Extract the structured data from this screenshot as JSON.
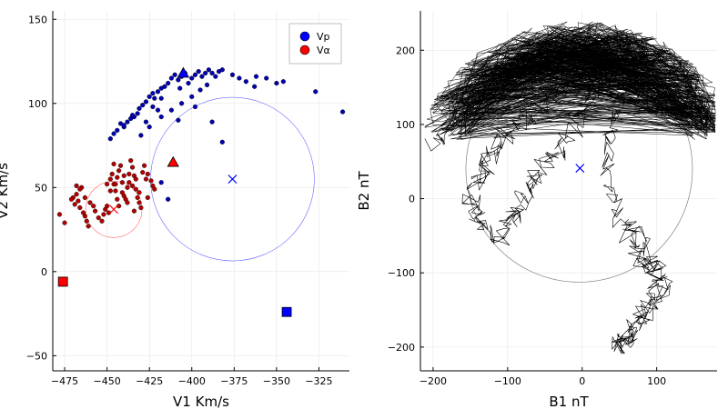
{
  "chart_data": [
    {
      "type": "scatter",
      "xlabel": "V1 Km/s",
      "ylabel": "V2 Km/s",
      "xlim": [
        -482,
        -307
      ],
      "ylim": [
        -59,
        155
      ],
      "xticks": [
        -475,
        -450,
        -425,
        -400,
        -375,
        -350,
        -325
      ],
      "yticks": [
        -50,
        0,
        50,
        100,
        150
      ],
      "grid": true,
      "legend_position": "top-right",
      "legend": [
        {
          "label": "Vp",
          "color": "#0000ff"
        },
        {
          "label": "Vα",
          "color": "#ff0000"
        }
      ],
      "series": [
        {
          "name": "Vp",
          "color": "#0000ff",
          "points": [
            [
              -448,
              79
            ],
            [
              -446,
              82
            ],
            [
              -444,
              84
            ],
            [
              -442,
              88
            ],
            [
              -440,
              86
            ],
            [
              -438,
              89
            ],
            [
              -436,
              91
            ],
            [
              -434,
              92
            ],
            [
              -432,
              94
            ],
            [
              -431,
              97
            ],
            [
              -429,
              99
            ],
            [
              -427,
              101
            ],
            [
              -425,
              104
            ],
            [
              -423,
              106
            ],
            [
              -422,
              103
            ],
            [
              -420,
              107
            ],
            [
              -418,
              109
            ],
            [
              -416,
              110
            ],
            [
              -414,
              112
            ],
            [
              -412,
              115
            ],
            [
              -410,
              117
            ],
            [
              -408,
              114
            ],
            [
              -406,
              116
            ],
            [
              -404,
              118
            ],
            [
              -402,
              112
            ],
            [
              -400,
              115
            ],
            [
              -398,
              117
            ],
            [
              -396,
              119
            ],
            [
              -394,
              116
            ],
            [
              -392,
              118
            ],
            [
              -390,
              120
            ],
            [
              -388,
              118
            ],
            [
              -386,
              116
            ],
            [
              -384,
              119
            ],
            [
              -382,
              120
            ],
            [
              -376,
              117
            ],
            [
              -372,
              115
            ],
            [
              -368,
              113
            ],
            [
              -362,
              116
            ],
            [
              -356,
              115
            ],
            [
              -350,
              112
            ],
            [
              -346,
              113
            ],
            [
              -430,
              81
            ],
            [
              -425,
              86
            ],
            [
              -418,
              92
            ],
            [
              -412,
              96
            ],
            [
              -406,
              100
            ],
            [
              -400,
              104
            ],
            [
              -395,
              108
            ],
            [
              -391,
              111
            ],
            [
              -388,
              89
            ],
            [
              -382,
              77
            ],
            [
              -418,
              53
            ],
            [
              -414,
              43
            ],
            [
              -408,
              90
            ],
            [
              -420,
              96
            ],
            [
              -435,
              93
            ],
            [
              -440,
              87
            ],
            [
              -427,
              89
            ],
            [
              -423,
              98
            ],
            [
              -418,
              103
            ],
            [
              -407,
              109
            ],
            [
              -398,
              98
            ],
            [
              -327,
              107
            ],
            [
              -311,
              95
            ],
            [
              -363,
              110
            ]
          ],
          "triangle": [
            -405,
            118
          ],
          "square": [
            -344,
            -24
          ],
          "cross": [
            -376,
            55
          ],
          "circle_radius_x": 48.3
        },
        {
          "name": "Vα",
          "color": "#ff0000",
          "points": [
            [
              -470,
              44
            ],
            [
              -469,
              40
            ],
            [
              -468,
              46
            ],
            [
              -467,
              42
            ],
            [
              -466,
              38
            ],
            [
              -465,
              50
            ],
            [
              -464,
              35
            ],
            [
              -463,
              33
            ],
            [
              -462,
              30
            ],
            [
              -461,
              27
            ],
            [
              -460,
              41
            ],
            [
              -458,
              39
            ],
            [
              -457,
              36
            ],
            [
              -455,
              32
            ],
            [
              -453,
              30
            ],
            [
              -452,
              34
            ],
            [
              -451,
              37
            ],
            [
              -450,
              39
            ],
            [
              -449,
              35
            ],
            [
              -448,
              55
            ],
            [
              -447,
              58
            ],
            [
              -446,
              52
            ],
            [
              -445,
              48
            ],
            [
              -444,
              56
            ],
            [
              -443,
              60
            ],
            [
              -442,
              63
            ],
            [
              -441,
              47
            ],
            [
              -440,
              45
            ],
            [
              -439,
              43
            ],
            [
              -438,
              50
            ],
            [
              -437,
              53
            ],
            [
              -436,
              66
            ],
            [
              -435,
              62
            ],
            [
              -434,
              57
            ],
            [
              -433,
              49
            ],
            [
              -432,
              44
            ],
            [
              -431,
              41
            ],
            [
              -430,
              38
            ],
            [
              -429,
              59
            ],
            [
              -428,
              63
            ],
            [
              -426,
              58
            ],
            [
              -424,
              54
            ],
            [
              -423,
              51
            ],
            [
              -422,
              49
            ],
            [
              -448,
              48
            ],
            [
              -446,
              64
            ],
            [
              -444,
              43
            ],
            [
              -441,
              53
            ],
            [
              -437,
              58
            ],
            [
              -435,
              51
            ],
            [
              -433,
              55
            ],
            [
              -478,
              34
            ],
            [
              -475,
              29
            ],
            [
              -471,
              43
            ],
            [
              -468,
              51
            ],
            [
              -466,
              49
            ],
            [
              -463,
              44
            ],
            [
              -440,
              57
            ],
            [
              -438,
              41
            ],
            [
              -434,
              36
            ],
            [
              -431,
              47
            ],
            [
              -427,
              55
            ],
            [
              -426,
              44
            ],
            [
              -445,
              52
            ],
            [
              -443,
              39
            ],
            [
              -450,
              52
            ]
          ],
          "triangle": [
            -411,
            65
          ],
          "square": [
            -476,
            -6
          ],
          "cross": [
            -446,
            37
          ],
          "circle_radius_x": 16.6
        }
      ]
    },
    {
      "type": "line",
      "xlabel": "B1 nT",
      "ylabel": "B2 nT",
      "xlim": [
        -217,
        181
      ],
      "ylim": [
        -232,
        253
      ],
      "xticks": [
        -200,
        -100,
        0,
        100
      ],
      "yticks": [
        -200,
        -100,
        0,
        100,
        200
      ],
      "grid": true,
      "color": "#000000",
      "circle": {
        "cx": -4,
        "cy": 40,
        "r": 152,
        "color": "#808080"
      },
      "cross": {
        "x": -3,
        "y": 41,
        "color": "#0000ff"
      },
      "path_waypoints": [
        [
          -198,
          70
        ],
        [
          -185,
          95
        ],
        [
          -170,
          115
        ],
        [
          -150,
          135
        ],
        [
          -130,
          150
        ],
        [
          -110,
          165
        ],
        [
          -90,
          175
        ],
        [
          -70,
          188
        ],
        [
          -50,
          198
        ],
        [
          -30,
          205
        ],
        [
          -10,
          210
        ],
        [
          10,
          212
        ],
        [
          30,
          214
        ],
        [
          50,
          212
        ],
        [
          70,
          206
        ],
        [
          90,
          200
        ],
        [
          110,
          190
        ],
        [
          130,
          175
        ],
        [
          145,
          160
        ],
        [
          155,
          140
        ],
        [
          162,
          115
        ],
        [
          165,
          100
        ],
        [
          150,
          115
        ],
        [
          130,
          125
        ],
        [
          110,
          135
        ],
        [
          90,
          140
        ],
        [
          70,
          150
        ],
        [
          50,
          160
        ],
        [
          30,
          165
        ],
        [
          10,
          170
        ],
        [
          -10,
          160
        ],
        [
          -30,
          145
        ],
        [
          -50,
          130
        ],
        [
          -70,
          115
        ],
        [
          -90,
          100
        ],
        [
          -110,
          80
        ],
        [
          -120,
          60
        ],
        [
          -130,
          40
        ],
        [
          -140,
          20
        ],
        [
          -150,
          0
        ],
        [
          -145,
          -20
        ],
        [
          -130,
          -40
        ],
        [
          -110,
          -55
        ],
        [
          -95,
          -30
        ],
        [
          -85,
          -10
        ],
        [
          -75,
          10
        ],
        [
          -60,
          30
        ],
        [
          -40,
          55
        ],
        [
          -20,
          80
        ],
        [
          0,
          110
        ],
        [
          15,
          150
        ],
        [
          25,
          180
        ],
        [
          40,
          200
        ],
        [
          60,
          208
        ],
        [
          80,
          195
        ],
        [
          60,
          160
        ],
        [
          40,
          100
        ],
        [
          30,
          50
        ],
        [
          40,
          0
        ],
        [
          55,
          -40
        ],
        [
          70,
          -70
        ],
        [
          90,
          -90
        ],
        [
          100,
          -110
        ],
        [
          95,
          -140
        ],
        [
          80,
          -160
        ],
        [
          70,
          -180
        ],
        [
          55,
          -195
        ],
        [
          45,
          -200
        ],
        [
          60,
          -185
        ],
        [
          85,
          -150
        ],
        [
          110,
          -120
        ],
        [
          100,
          -90
        ],
        [
          80,
          -60
        ],
        [
          65,
          -20
        ]
      ]
    }
  ]
}
